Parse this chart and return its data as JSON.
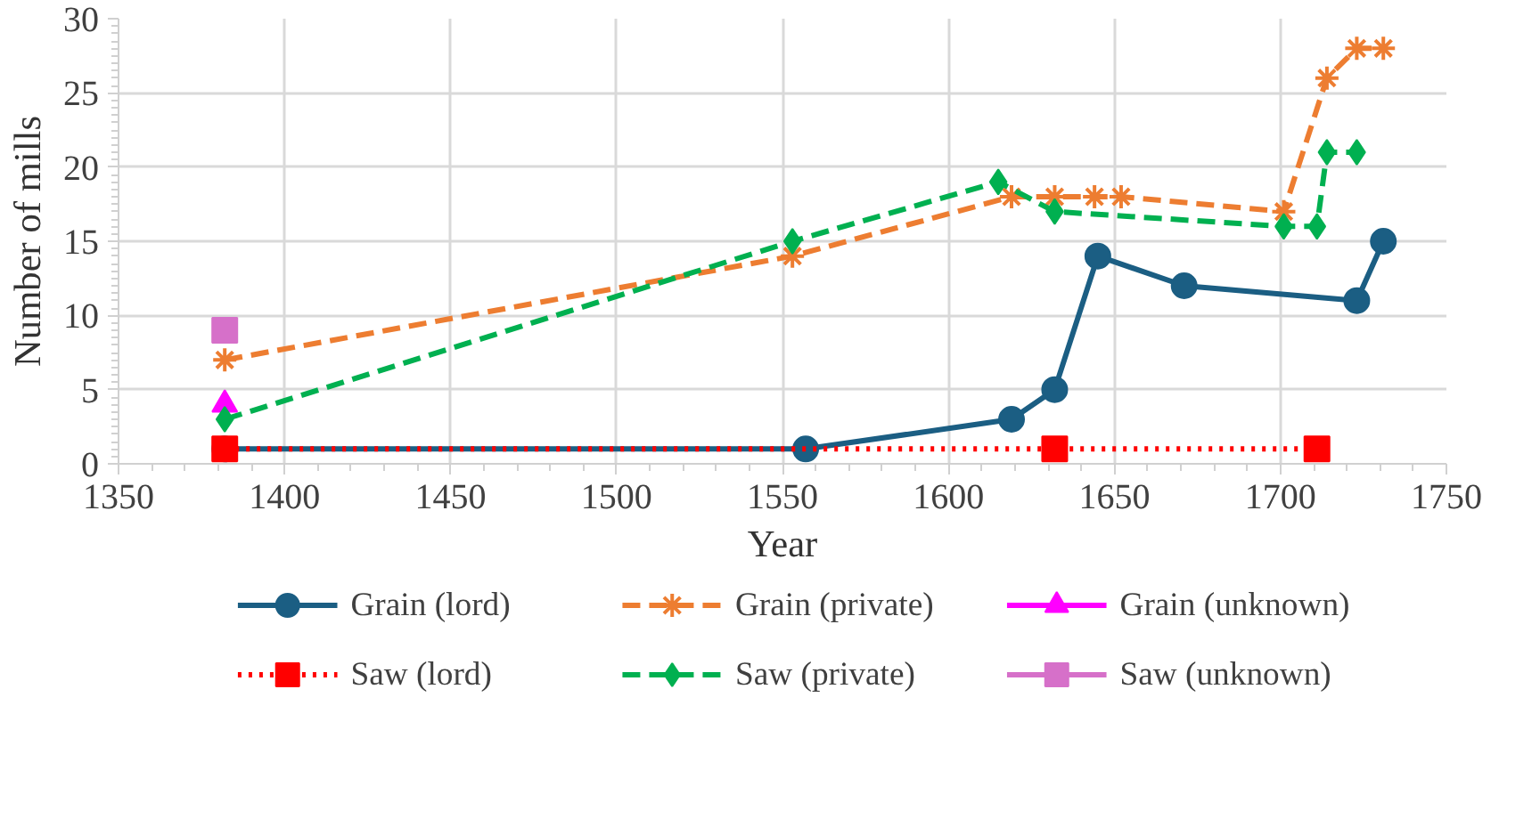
{
  "chart_data": {
    "type": "line",
    "xlabel": "Year",
    "ylabel": "Number of mills",
    "xlim": [
      1350,
      1750
    ],
    "xticks": [
      1350,
      1400,
      1450,
      1500,
      1550,
      1600,
      1650,
      1700,
      1750
    ],
    "ylim": [
      0,
      30
    ],
    "yticks": [
      0,
      5,
      10,
      15,
      20,
      25,
      30
    ],
    "grid": true,
    "legend": "bottom",
    "series": [
      {
        "name": "Grain (lord)",
        "color": "#1b5e83",
        "marker": "circle",
        "line_style": "solid",
        "x": [
          1382,
          1557,
          1619,
          1632,
          1645,
          1671,
          1723,
          1731
        ],
        "values": [
          1,
          1,
          3,
          5,
          14,
          12,
          11,
          15
        ]
      },
      {
        "name": "Grain (private)",
        "color": "#ed7d31",
        "marker": "cross",
        "line_style": "dashed",
        "x": [
          1382,
          1553,
          1619,
          1632,
          1644,
          1652,
          1701,
          1714,
          1723,
          1731
        ],
        "values": [
          7,
          14,
          18,
          18,
          18,
          18,
          17,
          26,
          28,
          28
        ]
      },
      {
        "name": "Grain (unknown)",
        "color": "#ff00ff",
        "marker": "triangle",
        "line_style": "solid",
        "x": [
          1382
        ],
        "values": [
          4
        ]
      },
      {
        "name": "Saw (lord)",
        "color": "#ff0000",
        "marker": "square",
        "line_style": "dotted",
        "x": [
          1382,
          1632,
          1711
        ],
        "values": [
          1,
          1,
          1
        ]
      },
      {
        "name": "Saw (private)",
        "color": "#00b050",
        "marker": "diamond",
        "line_style": "dashed",
        "x": [
          1382,
          1553,
          1615,
          1632,
          1701,
          1711,
          1714,
          1723
        ],
        "values": [
          3,
          15,
          19,
          17,
          16,
          16,
          21,
          21
        ]
      },
      {
        "name": "Saw (unknown)",
        "color": "#d670c9",
        "marker": "square",
        "line_style": "solid",
        "x": [
          1382
        ],
        "values": [
          9
        ]
      }
    ]
  }
}
